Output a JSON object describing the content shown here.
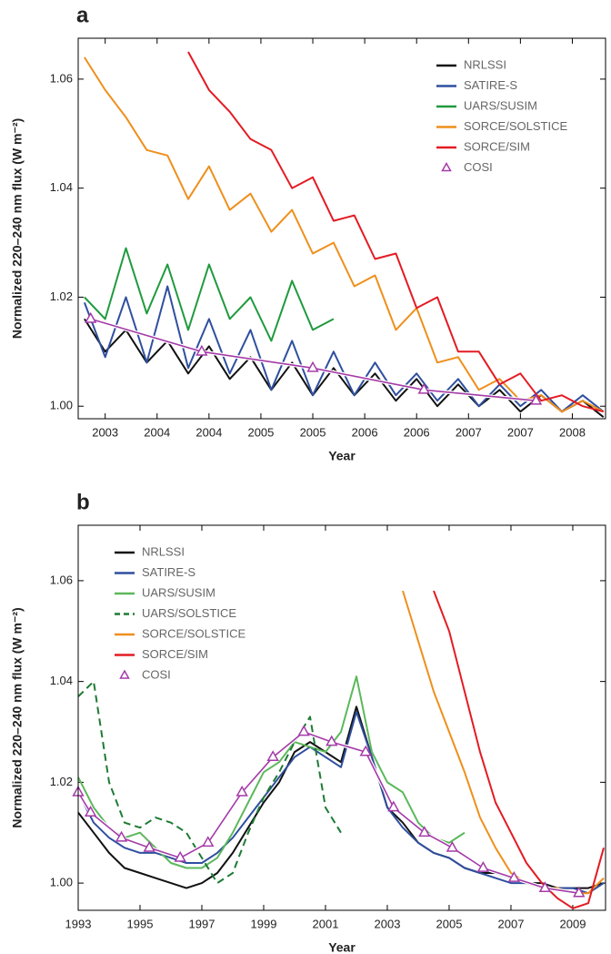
{
  "chart_data": [
    {
      "type": "line",
      "title": "a",
      "xlabel": "Year",
      "ylabel": "Normalized 220–240 nm flux (W m⁻²)",
      "x": [
        2002.8,
        2003.0,
        2003.2,
        2003.4,
        2003.6,
        2003.8,
        2004.0,
        2004.2,
        2004.4,
        2004.6,
        2004.8,
        2005.0,
        2005.2,
        2005.4,
        2005.6,
        2005.8,
        2006.0,
        2006.2,
        2006.4,
        2006.6,
        2006.8,
        2007.0,
        2007.2,
        2007.4,
        2007.6,
        2007.8
      ],
      "xlim": [
        2002.74,
        2007.82
      ],
      "xticks": [
        2003,
        {
          "value": 2003.5,
          "label": "2004"
        },
        2004,
        {
          "value": 2004.5,
          "label": "2005"
        },
        2005,
        {
          "value": 2005.5,
          "label": "2006"
        },
        2006,
        {
          "value": 2006.5,
          "label": "2007"
        },
        2007,
        {
          "value": 2007.5,
          "label": "2008"
        }
      ],
      "ylim": [
        0.9977,
        1.0675
      ],
      "yticks": [
        {
          "value": 1.0,
          "label": "1.00"
        },
        {
          "value": 1.02,
          "label": "1.02"
        },
        {
          "value": 1.04,
          "label": "1.04"
        },
        {
          "value": 1.06,
          "label": "1.06"
        }
      ],
      "legend": "upper right",
      "series": [
        {
          "name": "NRLSSI",
          "color": "#111111",
          "values": [
            1.016,
            1.01,
            1.014,
            1.008,
            1.012,
            1.006,
            1.011,
            1.005,
            1.009,
            1.003,
            1.008,
            1.002,
            1.007,
            1.002,
            1.006,
            1.001,
            1.005,
            1.0,
            1.004,
            1.0,
            1.003,
            0.999,
            1.002,
            0.999,
            1.001,
            0.998
          ]
        },
        {
          "name": "SATIRE-S",
          "color": "#2f4f9f",
          "values": [
            1.019,
            1.009,
            1.02,
            1.008,
            1.022,
            1.007,
            1.016,
            1.006,
            1.014,
            1.003,
            1.012,
            1.002,
            1.01,
            1.002,
            1.008,
            1.002,
            1.006,
            1.001,
            1.005,
            1.0,
            1.004,
            1.0,
            1.003,
            0.999,
            1.002,
            0.999
          ]
        },
        {
          "name": "UARS/SUSIM",
          "color": "#1f9a3e",
          "values": [
            1.02,
            1.016,
            1.029,
            1.017,
            1.026,
            1.014,
            1.026,
            1.016,
            1.02,
            1.012,
            1.023,
            1.014,
            1.016,
            null,
            null,
            null,
            null,
            null,
            null,
            null,
            null,
            null,
            null,
            null,
            null,
            null
          ]
        },
        {
          "name": "SORCE/SOLSTICE",
          "color": "#ef8f1c",
          "values": [
            1.064,
            1.058,
            1.053,
            1.047,
            1.046,
            1.038,
            1.044,
            1.036,
            1.039,
            1.032,
            1.036,
            1.028,
            1.03,
            1.022,
            1.024,
            1.014,
            1.018,
            1.008,
            1.009,
            1.003,
            1.005,
            1.001,
            1.002,
            0.999,
            1.001,
            0.999
          ]
        },
        {
          "name": "SORCE/SIM",
          "color": "#e31b23",
          "values": [
            null,
            null,
            null,
            null,
            null,
            1.065,
            1.058,
            1.054,
            1.049,
            1.047,
            1.04,
            1.042,
            1.034,
            1.035,
            1.027,
            1.028,
            1.018,
            1.02,
            1.01,
            1.01,
            1.004,
            1.006,
            1.001,
            1.002,
            1.0,
            0.999
          ]
        },
        {
          "name": "COSI",
          "color": "#a43aa8",
          "marker": "triangle",
          "x": [
            2002.86,
            2003.93,
            2005.0,
            2006.07,
            2007.15
          ],
          "values": [
            1.016,
            1.01,
            1.007,
            1.003,
            1.001
          ]
        }
      ]
    },
    {
      "type": "line",
      "title": "b",
      "xlabel": "Year",
      "ylabel": "Normalized 220–240 nm flux (W m⁻²)",
      "x": [
        1993,
        1993.5,
        1994,
        1994.5,
        1995,
        1995.5,
        1996,
        1996.5,
        1997,
        1997.5,
        1998,
        1998.5,
        1999,
        1999.5,
        2000,
        2000.5,
        2001,
        2001.5,
        2002,
        2002.5,
        2003,
        2003.5,
        2004,
        2004.5,
        2005,
        2005.5,
        2006,
        2006.5,
        2007,
        2007.5,
        2008,
        2008.5,
        2009,
        2009.5,
        2010
      ],
      "xlim": [
        1993,
        2010.06
      ],
      "xticks": [
        1993,
        1995,
        1997,
        1999,
        2001,
        2003,
        2005,
        2007,
        2009
      ],
      "ylim": [
        0.9946,
        1.071
      ],
      "yticks": [
        {
          "value": 1.0,
          "label": "1.00"
        },
        {
          "value": 1.02,
          "label": "1.02"
        },
        {
          "value": 1.04,
          "label": "1.04"
        },
        {
          "value": 1.06,
          "label": "1.06"
        }
      ],
      "legend": "upper left",
      "series": [
        {
          "name": "NRLSSI",
          "color": "#111111",
          "values": [
            1.014,
            1.01,
            1.006,
            1.003,
            1.002,
            1.001,
            1.0,
            0.999,
            1.0,
            1.002,
            1.006,
            1.011,
            1.016,
            1.02,
            1.026,
            1.028,
            1.026,
            1.024,
            1.035,
            1.025,
            1.015,
            1.012,
            1.008,
            1.006,
            1.005,
            1.003,
            1.002,
            1.002,
            1.001,
            1.0,
            1.0,
            0.999,
            0.999,
            0.999,
            1.0
          ]
        },
        {
          "name": "SATIRE-S",
          "color": "#2f4f9f",
          "values": [
            1.018,
            1.012,
            1.009,
            1.007,
            1.006,
            1.006,
            1.005,
            1.004,
            1.004,
            1.006,
            1.009,
            1.013,
            1.017,
            1.021,
            1.025,
            1.027,
            1.025,
            1.023,
            1.034,
            1.025,
            1.015,
            1.011,
            1.008,
            1.006,
            1.005,
            1.003,
            1.002,
            1.001,
            1.0,
            1.0,
            0.999,
            0.999,
            0.999,
            0.998,
            1.0
          ]
        },
        {
          "name": "UARS/SUSIM",
          "color": "#5cb85c",
          "values": [
            1.021,
            1.015,
            1.011,
            1.009,
            1.01,
            1.007,
            1.004,
            1.003,
            1.003,
            1.005,
            1.01,
            1.016,
            1.022,
            1.024,
            1.028,
            1.027,
            1.026,
            1.03,
            1.041,
            1.026,
            1.02,
            1.018,
            1.012,
            1.009,
            1.008,
            1.01,
            null,
            null,
            null,
            null,
            null,
            null,
            null,
            null,
            null
          ]
        },
        {
          "name": "UARS/SOLSTICE",
          "color": "#1e7b34",
          "dash": true,
          "values": [
            1.037,
            1.04,
            1.02,
            1.012,
            1.011,
            1.013,
            1.012,
            1.01,
            1.005,
            1.0,
            1.002,
            1.01,
            1.017,
            1.022,
            1.028,
            1.033,
            1.015,
            1.01,
            null,
            null,
            null,
            null,
            null,
            null,
            null,
            null,
            null,
            null,
            null,
            null,
            null,
            null,
            null,
            null,
            null
          ]
        },
        {
          "name": "SORCE/SOLSTICE",
          "color": "#ef8f1c",
          "values": [
            null,
            null,
            null,
            null,
            null,
            null,
            null,
            null,
            null,
            null,
            null,
            null,
            null,
            null,
            null,
            null,
            null,
            null,
            null,
            null,
            null,
            1.058,
            1.048,
            1.038,
            1.03,
            1.022,
            1.013,
            1.007,
            1.002,
            1.0,
            0.999,
            0.999,
            0.998,
            0.998,
            1.001
          ]
        },
        {
          "name": "SORCE/SIM",
          "color": "#e31b23",
          "values": [
            null,
            null,
            null,
            null,
            null,
            null,
            null,
            null,
            null,
            null,
            null,
            null,
            null,
            null,
            null,
            null,
            null,
            null,
            null,
            null,
            null,
            null,
            null,
            1.058,
            1.05,
            1.038,
            1.026,
            1.016,
            1.01,
            1.004,
            1.0,
            0.997,
            0.995,
            0.996,
            1.007
          ]
        },
        {
          "name": "COSI",
          "color": "#a43aa8",
          "marker": "triangle",
          "x": [
            1993,
            1993.4,
            1994.4,
            1995.3,
            1996.3,
            1997.2,
            1998.3,
            1999.3,
            2000.3,
            2001.2,
            2002.3,
            2003.2,
            2004.2,
            2005.1,
            2006.1,
            2007.1,
            2008.1,
            2009.2
          ],
          "values": [
            1.018,
            1.014,
            1.009,
            1.007,
            1.005,
            1.008,
            1.018,
            1.025,
            1.03,
            1.028,
            1.026,
            1.015,
            1.01,
            1.007,
            1.003,
            1.001,
            0.999,
            0.998
          ]
        }
      ]
    }
  ]
}
